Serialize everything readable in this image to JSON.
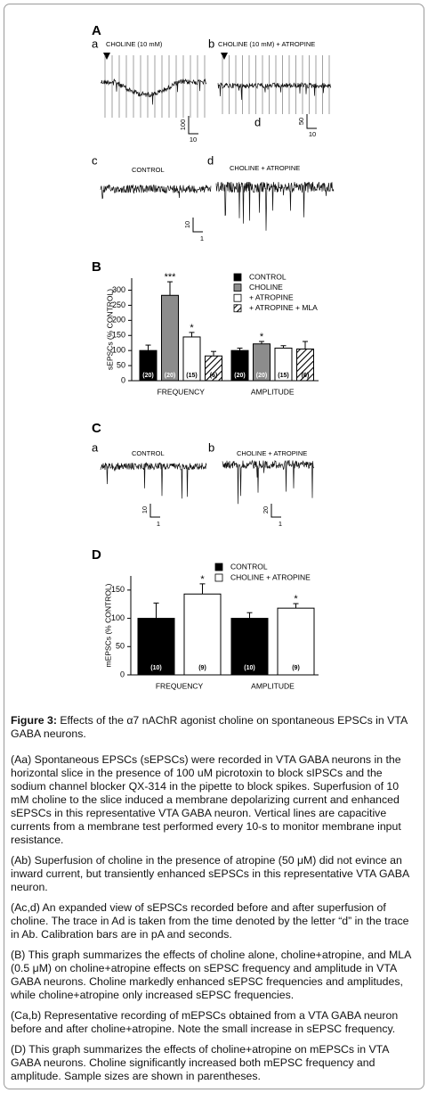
{
  "figure": {
    "panel_a": {
      "label": "A",
      "sub_a": "a",
      "sub_b": "b",
      "title_a": "CHOLINE (10 mM)",
      "title_b": "CHOLINE (10 mM) + ATROPINE",
      "marker_d": "d",
      "scale_a_y": "100",
      "scale_a_x": "10",
      "scale_b_y": "50",
      "scale_b_x": "10",
      "sub_c": "c",
      "sub_d": "d",
      "title_c": "CONTROL",
      "title_d": "CHOLINE + ATROPINE",
      "scale_cd_y": "10",
      "scale_cd_x": "1"
    },
    "panel_b": {
      "label": "B"
    },
    "panel_c": {
      "label": "C",
      "sub_a": "a",
      "sub_b": "b",
      "title_a": "CONTROL",
      "title_b": "CHOLINE + ATROPINE",
      "scale_a_y": "10",
      "scale_a_x": "1",
      "scale_b_y": "20",
      "scale_b_x": "1"
    },
    "panel_d": {
      "label": "D"
    }
  },
  "chart_data": [
    {
      "type": "bar",
      "y_label": "sEPSCs (% CONTROL)",
      "categories": [
        "FREQUENCY",
        "AMPLITUDE"
      ],
      "ylim": [
        0,
        340
      ],
      "yticks": [
        0,
        50,
        100,
        150,
        200,
        250,
        300
      ],
      "series": [
        {
          "name": "CONTROL",
          "color": "#000000",
          "values": [
            100,
            100
          ],
          "errors": [
            18,
            8
          ],
          "n_labels": [
            "(20)",
            "(20)"
          ],
          "significance": [
            null,
            null
          ]
        },
        {
          "name": "CHOLINE",
          "color": "#8c8c8c",
          "values": [
            283,
            122
          ],
          "errors": [
            45,
            8
          ],
          "n_labels": [
            "(20)",
            "(20)"
          ],
          "significance": [
            "***",
            "*"
          ]
        },
        {
          "name": "+ ATROPINE",
          "color": "#ffffff",
          "values": [
            145,
            108
          ],
          "errors": [
            15,
            8
          ],
          "n_labels": [
            "(15)",
            "(15)"
          ],
          "significance": [
            "*",
            null
          ]
        },
        {
          "name": "+ ATROPINE + MLA",
          "color": "#ffffff",
          "hatch": true,
          "values": [
            82,
            105
          ],
          "errors": [
            15,
            25
          ],
          "n_labels": [
            "(6)",
            "(6)"
          ],
          "significance": [
            null,
            null
          ]
        }
      ]
    },
    {
      "type": "bar",
      "y_label": "mEPSCs (% CONTROL)",
      "categories": [
        "FREQUENCY",
        "AMPLITUDE"
      ],
      "ylim": [
        0,
        175
      ],
      "yticks": [
        0,
        50,
        100,
        150
      ],
      "series": [
        {
          "name": "CONTROL",
          "color": "#000000",
          "values": [
            100,
            100
          ],
          "errors": [
            27,
            10
          ],
          "n_labels": [
            "(10)",
            "(10)"
          ],
          "significance": [
            null,
            null
          ]
        },
        {
          "name": "CHOLINE + ATROPINE",
          "color": "#ffffff",
          "values": [
            143,
            118
          ],
          "errors": [
            18,
            8
          ],
          "n_labels": [
            "(9)",
            "(9)"
          ],
          "significance": [
            "*",
            "*"
          ]
        }
      ]
    }
  ],
  "caption": {
    "label": "Figure 3:",
    "title": "Effects of the α7 nAChR agonist choline on spontaneous EPSCs in VTA GABA neurons.",
    "paragraphs": [
      "(Aa) Spontaneous EPSCs (sEPSCs) were recorded in VTA GABA neurons in the horizontal slice in the presence of 100 uM picrotoxin to block sIPSCs and the sodium channel blocker QX-314 in the pipette to block spikes.  Superfusion of 10 mM choline to the slice induced a membrane depolarizing current and enhanced sEPSCs in this representative VTA GABA neuron.  Vertical lines are capacitive currents from a membrane test performed every 10-s to monitor membrane input resistance.",
      "(Ab) Superfusion of choline in the presence of atropine (50 μM) did not evince an inward current, but transiently enhanced sEPSCs in this representative VTA GABA neuron.",
      "(Ac,d) An expanded view of sEPSCs recorded before and after superfusion of choline.  The trace in Ad is taken from the time denoted by the letter “d” in the trace in Ab.  Calibration bars are in pA and seconds.",
      "(B) This graph summarizes the effects of choline alone, choline+atropine, and MLA (0.5 μM) on choline+atropine effects on sEPSC frequency and amplitude in VTA GABA neurons.  Choline markedly enhanced sEPSC frequencies and amplitudes, while choline+atropine only increased sEPSC frequencies.",
      " (Ca,b) Representative recording of mEPSCs obtained from a VTA GABA neuron before and after choline+atropine.  Note the small increase in sEPSC frequency.",
      "(D) This graph summarizes the effects of choline+atropine on mEPSCs in VTA GABA neurons.  Choline significantly increased both mEPSC frequency and amplitude. Sample sizes are shown in parentheses."
    ]
  }
}
